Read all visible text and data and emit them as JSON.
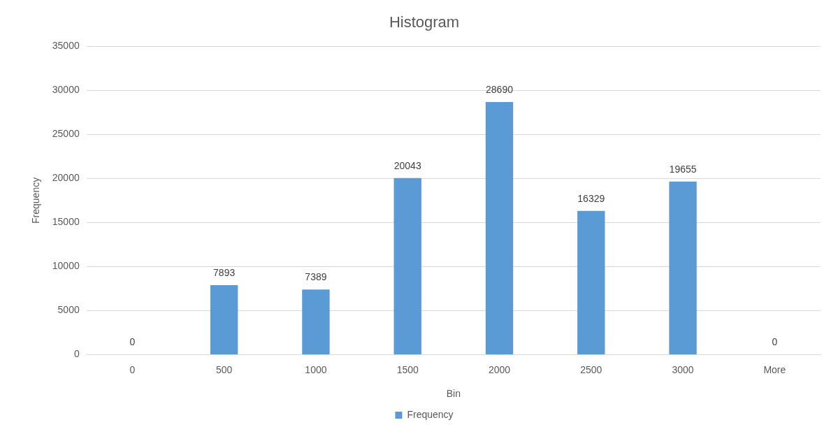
{
  "chart_data": {
    "type": "bar",
    "title": "Histogram",
    "xlabel": "Bin",
    "ylabel": "Frequency",
    "categories": [
      "0",
      "500",
      "1000",
      "1500",
      "2000",
      "2500",
      "3000",
      "More"
    ],
    "series": [
      {
        "name": "Frequency",
        "color": "#5b9bd5",
        "values": [
          0,
          7893,
          7389,
          20043,
          28690,
          16329,
          19655,
          0
        ]
      }
    ],
    "ylim": [
      0,
      35000
    ],
    "yticks": [
      0,
      5000,
      10000,
      15000,
      20000,
      25000,
      30000,
      35000
    ],
    "grid": "y",
    "legend": "bottom",
    "data_labels": true
  }
}
